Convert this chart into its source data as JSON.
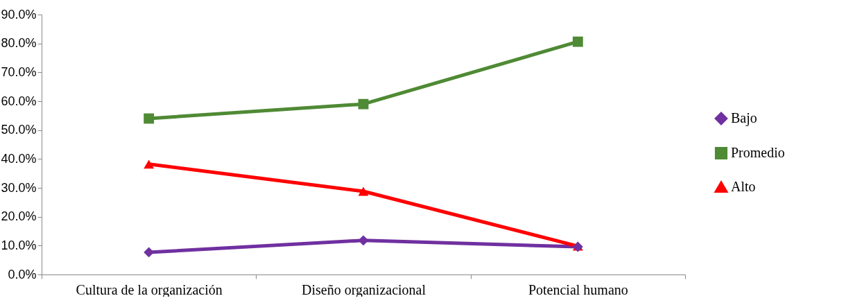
{
  "chart_data": {
    "type": "line",
    "categories": [
      "Cultura de la organización",
      "Diseño organizacional",
      "Potencial humano"
    ],
    "series": [
      {
        "name": "Bajo",
        "color": "#7030a0",
        "marker": "diamond",
        "values": [
          7.7,
          11.8,
          9.6
        ]
      },
      {
        "name": "Promedio",
        "color": "#4f8a34",
        "marker": "square",
        "values": [
          54.0,
          59.0,
          80.6
        ]
      },
      {
        "name": "Alto",
        "color": "#ff0000",
        "marker": "triangle",
        "values": [
          38.2,
          28.8,
          9.8
        ]
      }
    ],
    "ylim": [
      0,
      90
    ],
    "yticks": [
      {
        "value": 0,
        "label": "0.0%"
      },
      {
        "value": 10,
        "label": "10.0%"
      },
      {
        "value": 20,
        "label": "20.0%"
      },
      {
        "value": 30,
        "label": "30.0%"
      },
      {
        "value": 40,
        "label": "40.0%"
      },
      {
        "value": 50,
        "label": "50.0%"
      },
      {
        "value": 60,
        "label": "60.0%"
      },
      {
        "value": 70,
        "label": "70.0%"
      },
      {
        "value": 80,
        "label": "80.0%"
      },
      {
        "value": 90,
        "label": "90.0%"
      }
    ],
    "legend": "right",
    "grid": false
  }
}
